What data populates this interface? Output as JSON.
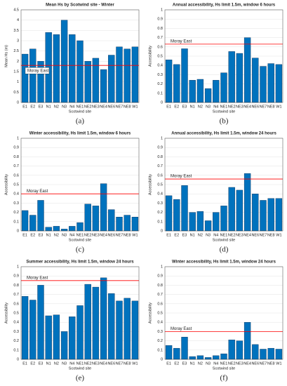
{
  "chart_data": [
    {
      "type": "bar",
      "panel_label": "(a)",
      "title": "Mean Hs by Scotwind site - Winter",
      "xlabel": "Scotwind site",
      "ylabel": "Mean Hs (m)",
      "categories": [
        "E1",
        "E2",
        "E3",
        "N1",
        "N2",
        "N3",
        "N4",
        "NE1",
        "NE2",
        "NE3",
        "NE4",
        "NE6",
        "NE7",
        "NE8",
        "W1"
      ],
      "values": [
        2.35,
        2.6,
        2.0,
        3.4,
        3.3,
        4.0,
        3.3,
        3.0,
        2.0,
        2.15,
        1.6,
        2.3,
        2.7,
        2.6,
        2.7
      ],
      "color": "#0072bd",
      "ylim": [
        0,
        4.5
      ],
      "yticks": [
        0,
        0.5,
        1,
        1.5,
        2,
        2.5,
        3,
        3.5,
        4,
        4.5
      ],
      "grid": true,
      "reference": {
        "value": 1.8,
        "label": "Moray East",
        "color": "#ff0000",
        "label_box": true
      }
    },
    {
      "type": "bar",
      "panel_label": "(b)",
      "title": "Annual accessibility, Hs limit 1.5m, window 6 hours",
      "xlabel": "Scotwind site",
      "ylabel": "Accessibility",
      "categories": [
        "E1",
        "E2",
        "E3",
        "N1",
        "N2",
        "N3",
        "N4",
        "NE1",
        "NE2",
        "NE3",
        "NE4",
        "NE6",
        "NE7",
        "NE8",
        "W1"
      ],
      "values": [
        0.46,
        0.41,
        0.58,
        0.24,
        0.25,
        0.15,
        0.24,
        0.32,
        0.55,
        0.53,
        0.7,
        0.48,
        0.39,
        0.42,
        0.41
      ],
      "color": "#0072bd",
      "ylim": [
        0,
        1
      ],
      "yticks": [
        0,
        0.1,
        0.2,
        0.3,
        0.4,
        0.5,
        0.6,
        0.7,
        0.8,
        0.9,
        1
      ],
      "grid": true,
      "reference": {
        "value": 0.63,
        "label": "Moray East",
        "color": "#ff0000",
        "label_box": false
      }
    },
    {
      "type": "bar",
      "panel_label": "(c)",
      "title": "Winter accessibility, Hs limit 1.5m, window 6 hours",
      "xlabel": "Scotwind site",
      "ylabel": "Accessibility",
      "categories": [
        "E1",
        "E2",
        "E3",
        "N1",
        "N2",
        "N3",
        "N4",
        "NE1",
        "NE2",
        "NE3",
        "NE4",
        "NE6",
        "NE7",
        "NE8",
        "W1"
      ],
      "values": [
        0.22,
        0.17,
        0.33,
        0.04,
        0.05,
        0.02,
        0.05,
        0.09,
        0.29,
        0.27,
        0.51,
        0.23,
        0.15,
        0.17,
        0.15
      ],
      "color": "#0072bd",
      "ylim": [
        0,
        1
      ],
      "yticks": [
        0,
        0.1,
        0.2,
        0.3,
        0.4,
        0.5,
        0.6,
        0.7,
        0.8,
        0.9,
        1
      ],
      "grid": true,
      "reference": {
        "value": 0.4,
        "label": "Moray East",
        "color": "#ff0000",
        "label_box": false
      }
    },
    {
      "type": "bar",
      "panel_label": "(d)",
      "title": "Annual accessibility, Hs limit 1.5m, window 24 hours",
      "xlabel": "Scotwind site",
      "ylabel": "Accessibility",
      "categories": [
        "E1",
        "E2",
        "E3",
        "N1",
        "N2",
        "N3",
        "N4",
        "NE1",
        "NE2",
        "NE3",
        "NE4",
        "NE6",
        "NE7",
        "NE8",
        "W1"
      ],
      "values": [
        0.38,
        0.34,
        0.49,
        0.2,
        0.21,
        0.11,
        0.2,
        0.27,
        0.47,
        0.44,
        0.62,
        0.4,
        0.33,
        0.35,
        0.35
      ],
      "color": "#0072bd",
      "ylim": [
        0,
        1
      ],
      "yticks": [
        0,
        0.1,
        0.2,
        0.3,
        0.4,
        0.5,
        0.6,
        0.7,
        0.8,
        0.9,
        1
      ],
      "grid": true,
      "reference": {
        "value": 0.56,
        "label": "Moray East",
        "color": "#ff0000",
        "label_box": false
      }
    },
    {
      "type": "bar",
      "panel_label": "(e)",
      "title": "Summer accessibility, Hs limit 1.5m, window 24 hours",
      "xlabel": "Scotwind site",
      "ylabel": "Accessibility",
      "categories": [
        "E1",
        "E2",
        "E3",
        "N1",
        "N2",
        "N3",
        "N4",
        "NE1",
        "NE2",
        "NE3",
        "NE4",
        "NE6",
        "NE7",
        "NE8",
        "W1"
      ],
      "values": [
        0.68,
        0.64,
        0.8,
        0.47,
        0.48,
        0.3,
        0.46,
        0.58,
        0.81,
        0.78,
        0.88,
        0.71,
        0.63,
        0.66,
        0.63
      ],
      "color": "#0072bd",
      "ylim": [
        0,
        1
      ],
      "yticks": [
        0,
        0.1,
        0.2,
        0.3,
        0.4,
        0.5,
        0.6,
        0.7,
        0.8,
        0.9,
        1
      ],
      "grid": true,
      "reference": {
        "value": 0.85,
        "label": "Moray East",
        "color": "#ff0000",
        "label_box": false
      }
    },
    {
      "type": "bar",
      "panel_label": "(f)",
      "title": "Winter accessibility, Hs limit 1.5m, window 24 hours",
      "xlabel": "Scotwind site",
      "ylabel": "Accessibility",
      "categories": [
        "E1",
        "E2",
        "E3",
        "N1",
        "N2",
        "N3",
        "N4",
        "NE1",
        "NE2",
        "NE3",
        "NE4",
        "NE6",
        "NE7",
        "NE8",
        "W1"
      ],
      "values": [
        0.15,
        0.12,
        0.24,
        0.03,
        0.04,
        0.02,
        0.04,
        0.06,
        0.21,
        0.2,
        0.4,
        0.16,
        0.11,
        0.12,
        0.11
      ],
      "color": "#0072bd",
      "ylim": [
        0,
        1
      ],
      "yticks": [
        0,
        0.1,
        0.2,
        0.3,
        0.4,
        0.5,
        0.6,
        0.7,
        0.8,
        0.9,
        1
      ],
      "grid": true,
      "reference": {
        "value": 0.3,
        "label": "Moray East",
        "color": "#ff0000",
        "label_box": false
      }
    }
  ]
}
